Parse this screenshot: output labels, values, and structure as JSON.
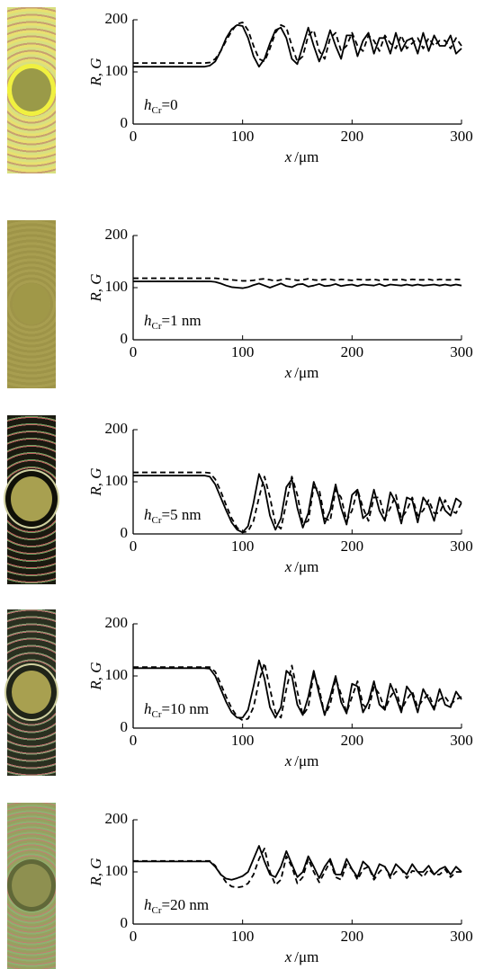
{
  "chart_data": [
    {
      "type": "line",
      "annotation": {
        "symbol": "h",
        "subscript": "Cr",
        "text": "=0"
      },
      "xlabel": {
        "symbol": "x",
        "unit": "/μm"
      },
      "ylabel": "R, G",
      "xlim": [
        0,
        300
      ],
      "xticks": [
        0,
        100,
        200,
        300
      ],
      "ylim": [
        0,
        200
      ],
      "yticks": [
        0,
        100,
        200
      ],
      "x": [
        0,
        5,
        10,
        15,
        20,
        25,
        30,
        35,
        40,
        45,
        50,
        55,
        60,
        65,
        70,
        75,
        80,
        85,
        90,
        95,
        100,
        105,
        110,
        115,
        120,
        125,
        130,
        135,
        140,
        145,
        150,
        155,
        160,
        165,
        170,
        175,
        180,
        185,
        190,
        195,
        200,
        205,
        210,
        215,
        220,
        225,
        230,
        235,
        240,
        245,
        250,
        255,
        260,
        265,
        270,
        275,
        280,
        285,
        290,
        295,
        300
      ],
      "series": [
        {
          "color": "#000000",
          "style": "solid",
          "values": [
            110,
            110,
            110,
            110,
            110,
            110,
            110,
            110,
            110,
            110,
            110,
            110,
            110,
            110,
            112,
            120,
            140,
            165,
            182,
            190,
            188,
            165,
            130,
            110,
            125,
            155,
            180,
            185,
            165,
            125,
            115,
            150,
            185,
            150,
            120,
            145,
            180,
            150,
            125,
            170,
            170,
            130,
            160,
            175,
            135,
            165,
            165,
            135,
            175,
            140,
            160,
            165,
            135,
            175,
            140,
            170,
            150,
            150,
            170,
            135,
            145
          ]
        },
        {
          "color": "#000000",
          "style": "dashed",
          "values": [
            117,
            117,
            117,
            117,
            117,
            117,
            117,
            117,
            117,
            117,
            117,
            117,
            117,
            117,
            118,
            125,
            140,
            160,
            178,
            192,
            195,
            180,
            150,
            125,
            120,
            145,
            175,
            190,
            185,
            150,
            120,
            130,
            170,
            180,
            140,
            125,
            165,
            175,
            140,
            150,
            175,
            150,
            140,
            170,
            160,
            140,
            170,
            155,
            145,
            170,
            145,
            155,
            165,
            145,
            165,
            150,
            160,
            160,
            145,
            165,
            150
          ]
        }
      ]
    },
    {
      "type": "line",
      "annotation": {
        "symbol": "h",
        "subscript": "Cr",
        "text": "=1 nm"
      },
      "xlabel": {
        "symbol": "x",
        "unit": "/μm"
      },
      "ylabel": "R, G",
      "xlim": [
        0,
        300
      ],
      "xticks": [
        0,
        100,
        200,
        300
      ],
      "ylim": [
        0,
        200
      ],
      "yticks": [
        0,
        100,
        200
      ],
      "x": [
        0,
        5,
        10,
        15,
        20,
        25,
        30,
        35,
        40,
        45,
        50,
        55,
        60,
        65,
        70,
        75,
        80,
        85,
        90,
        95,
        100,
        105,
        110,
        115,
        120,
        125,
        130,
        135,
        140,
        145,
        150,
        155,
        160,
        165,
        170,
        175,
        180,
        185,
        190,
        195,
        200,
        205,
        210,
        215,
        220,
        225,
        230,
        235,
        240,
        245,
        250,
        255,
        260,
        265,
        270,
        275,
        280,
        285,
        290,
        295,
        300
      ],
      "series": [
        {
          "color": "#000000",
          "style": "solid",
          "values": [
            112,
            112,
            112,
            112,
            112,
            112,
            112,
            112,
            112,
            112,
            112,
            112,
            112,
            112,
            112,
            111,
            108,
            104,
            101,
            100,
            99,
            101,
            105,
            108,
            104,
            100,
            104,
            108,
            103,
            101,
            106,
            107,
            102,
            104,
            107,
            103,
            104,
            107,
            103,
            105,
            106,
            103,
            106,
            105,
            104,
            107,
            103,
            106,
            105,
            104,
            106,
            104,
            106,
            104,
            105,
            106,
            104,
            106,
            104,
            106,
            104
          ]
        },
        {
          "color": "#000000",
          "style": "dashed",
          "values": [
            118,
            118,
            118,
            118,
            118,
            118,
            118,
            118,
            118,
            118,
            118,
            118,
            118,
            118,
            118,
            118,
            117,
            116,
            115,
            114,
            113,
            113,
            114,
            116,
            117,
            115,
            113,
            115,
            117,
            116,
            114,
            115,
            117,
            115,
            114,
            116,
            116,
            114,
            116,
            115,
            114,
            116,
            115,
            115,
            116,
            114,
            116,
            115,
            115,
            116,
            114,
            116,
            115,
            115,
            116,
            114,
            116,
            115,
            115,
            116,
            115
          ]
        }
      ]
    },
    {
      "type": "line",
      "annotation": {
        "symbol": "h",
        "subscript": "Cr",
        "text": "=5 nm"
      },
      "xlabel": {
        "symbol": "x",
        "unit": "/μm"
      },
      "ylabel": "R, G",
      "xlim": [
        0,
        300
      ],
      "xticks": [
        0,
        100,
        200,
        300
      ],
      "ylim": [
        0,
        200
      ],
      "yticks": [
        0,
        100,
        200
      ],
      "x": [
        0,
        5,
        10,
        15,
        20,
        25,
        30,
        35,
        40,
        45,
        50,
        55,
        60,
        65,
        70,
        75,
        80,
        85,
        90,
        95,
        100,
        105,
        110,
        115,
        120,
        125,
        130,
        135,
        140,
        145,
        150,
        155,
        160,
        165,
        170,
        175,
        180,
        185,
        190,
        195,
        200,
        205,
        210,
        215,
        220,
        225,
        230,
        235,
        240,
        245,
        250,
        255,
        260,
        265,
        270,
        275,
        280,
        285,
        290,
        295,
        300
      ],
      "series": [
        {
          "color": "#000000",
          "style": "solid",
          "values": [
            112,
            112,
            112,
            112,
            112,
            112,
            112,
            112,
            112,
            112,
            112,
            112,
            112,
            112,
            110,
            95,
            70,
            45,
            22,
            8,
            3,
            15,
            60,
            115,
            90,
            35,
            8,
            30,
            90,
            105,
            50,
            12,
            40,
            100,
            70,
            20,
            45,
            95,
            50,
            18,
            75,
            85,
            30,
            40,
            85,
            45,
            25,
            80,
            60,
            20,
            70,
            65,
            22,
            70,
            55,
            25,
            70,
            45,
            35,
            68,
            60
          ]
        },
        {
          "color": "#000000",
          "style": "dashed",
          "values": [
            118,
            118,
            118,
            118,
            118,
            118,
            118,
            118,
            118,
            118,
            118,
            118,
            118,
            118,
            117,
            105,
            82,
            55,
            30,
            12,
            3,
            5,
            25,
            70,
            110,
            70,
            20,
            10,
            60,
            110,
            75,
            20,
            25,
            90,
            85,
            30,
            25,
            85,
            70,
            25,
            45,
            85,
            50,
            25,
            70,
            70,
            30,
            50,
            75,
            30,
            45,
            70,
            35,
            45,
            65,
            40,
            40,
            65,
            45,
            40,
            60
          ]
        }
      ]
    },
    {
      "type": "line",
      "annotation": {
        "symbol": "h",
        "subscript": "Cr",
        "text": "=10 nm"
      },
      "xlabel": {
        "symbol": "x",
        "unit": "/μm"
      },
      "ylabel": "R, G",
      "xlim": [
        0,
        300
      ],
      "xticks": [
        0,
        100,
        200,
        300
      ],
      "ylim": [
        0,
        200
      ],
      "yticks": [
        0,
        100,
        200
      ],
      "x": [
        0,
        5,
        10,
        15,
        20,
        25,
        30,
        35,
        40,
        45,
        50,
        55,
        60,
        65,
        70,
        75,
        80,
        85,
        90,
        95,
        100,
        105,
        110,
        115,
        120,
        125,
        130,
        135,
        140,
        145,
        150,
        155,
        160,
        165,
        170,
        175,
        180,
        185,
        190,
        195,
        200,
        205,
        210,
        215,
        220,
        225,
        230,
        235,
        240,
        245,
        250,
        255,
        260,
        265,
        270,
        275,
        280,
        285,
        290,
        295,
        300
      ],
      "series": [
        {
          "color": "#000000",
          "style": "solid",
          "values": [
            115,
            115,
            115,
            115,
            115,
            115,
            115,
            115,
            115,
            115,
            115,
            115,
            115,
            115,
            114,
            100,
            75,
            50,
            30,
            20,
            20,
            35,
            80,
            130,
            95,
            40,
            20,
            40,
            110,
            100,
            45,
            25,
            60,
            110,
            65,
            25,
            60,
            100,
            50,
            28,
            85,
            80,
            30,
            50,
            90,
            45,
            35,
            85,
            60,
            30,
            80,
            65,
            30,
            75,
            55,
            35,
            75,
            45,
            40,
            70,
            55
          ]
        },
        {
          "color": "#000000",
          "style": "dashed",
          "values": [
            117,
            117,
            117,
            117,
            117,
            117,
            117,
            117,
            117,
            117,
            117,
            117,
            117,
            117,
            117,
            108,
            85,
            60,
            38,
            22,
            15,
            18,
            40,
            90,
            125,
            75,
            30,
            20,
            75,
            120,
            70,
            25,
            40,
            105,
            75,
            25,
            45,
            95,
            65,
            30,
            60,
            90,
            45,
            35,
            80,
            65,
            35,
            60,
            75,
            35,
            55,
            70,
            40,
            55,
            65,
            40,
            55,
            60,
            45,
            55,
            60
          ]
        }
      ]
    },
    {
      "type": "line",
      "annotation": {
        "symbol": "h",
        "subscript": "Cr",
        "text": "=20 nm"
      },
      "xlabel": {
        "symbol": "x",
        "unit": "/μm"
      },
      "ylabel": "R, G",
      "xlim": [
        0,
        300
      ],
      "xticks": [
        0,
        100,
        200,
        300
      ],
      "ylim": [
        0,
        200
      ],
      "yticks": [
        0,
        100,
        200
      ],
      "x": [
        0,
        5,
        10,
        15,
        20,
        25,
        30,
        35,
        40,
        45,
        50,
        55,
        60,
        65,
        70,
        75,
        80,
        85,
        90,
        95,
        100,
        105,
        110,
        115,
        120,
        125,
        130,
        135,
        140,
        145,
        150,
        155,
        160,
        165,
        170,
        175,
        180,
        185,
        190,
        195,
        200,
        205,
        210,
        215,
        220,
        225,
        230,
        235,
        240,
        245,
        250,
        255,
        260,
        265,
        270,
        275,
        280,
        285,
        290,
        295,
        300
      ],
      "series": [
        {
          "color": "#000000",
          "style": "solid",
          "values": [
            120,
            120,
            120,
            120,
            120,
            120,
            120,
            120,
            120,
            120,
            120,
            120,
            120,
            120,
            120,
            110,
            95,
            87,
            85,
            88,
            92,
            100,
            125,
            150,
            120,
            95,
            90,
            110,
            140,
            115,
            90,
            100,
            130,
            110,
            88,
            110,
            125,
            95,
            95,
            125,
            105,
            90,
            120,
            110,
            90,
            115,
            110,
            92,
            115,
            105,
            95,
            115,
            100,
            100,
            112,
            95,
            105,
            110,
            95,
            110,
            100
          ]
        },
        {
          "color": "#000000",
          "style": "dashed",
          "values": [
            121,
            121,
            121,
            121,
            121,
            121,
            121,
            121,
            121,
            121,
            121,
            121,
            121,
            121,
            121,
            112,
            95,
            80,
            72,
            70,
            72,
            78,
            95,
            125,
            145,
            100,
            75,
            85,
            130,
            110,
            78,
            90,
            125,
            100,
            80,
            100,
            120,
            90,
            85,
            115,
            105,
            85,
            105,
            110,
            85,
            100,
            110,
            88,
            100,
            105,
            88,
            102,
            100,
            90,
            105,
            95,
            95,
            105,
            90,
            100,
            100
          ]
        }
      ]
    }
  ]
}
